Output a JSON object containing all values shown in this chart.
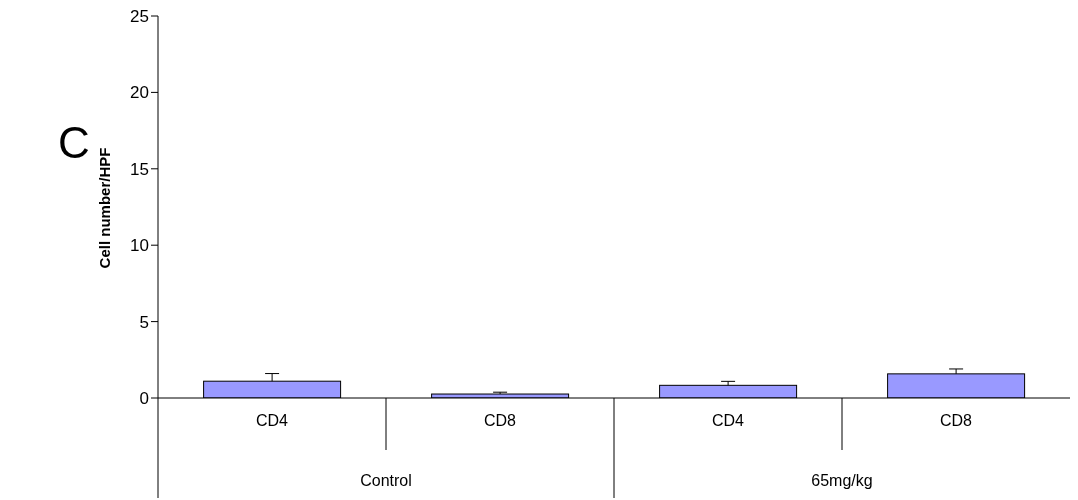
{
  "chart_data": {
    "type": "bar",
    "ylabel": "Cell number/HPF",
    "categories": [
      "CD4",
      "CD8",
      "CD4",
      "CD8"
    ],
    "values": [
      1.1,
      0.26,
      0.83,
      1.58
    ],
    "errors": [
      [
        1.1,
        1.6
      ],
      [
        0.26,
        0.38
      ],
      [
        0.83,
        1.09
      ],
      [
        1.58,
        1.9
      ]
    ],
    "color": "#9999ff",
    "ylim": [
      0,
      25
    ],
    "yticks": [
      0,
      5,
      10,
      15,
      20,
      25
    ],
    "grid": false,
    "legend": false,
    "annotations": [
      "C",
      "Control",
      "65mg/kg"
    ]
  }
}
